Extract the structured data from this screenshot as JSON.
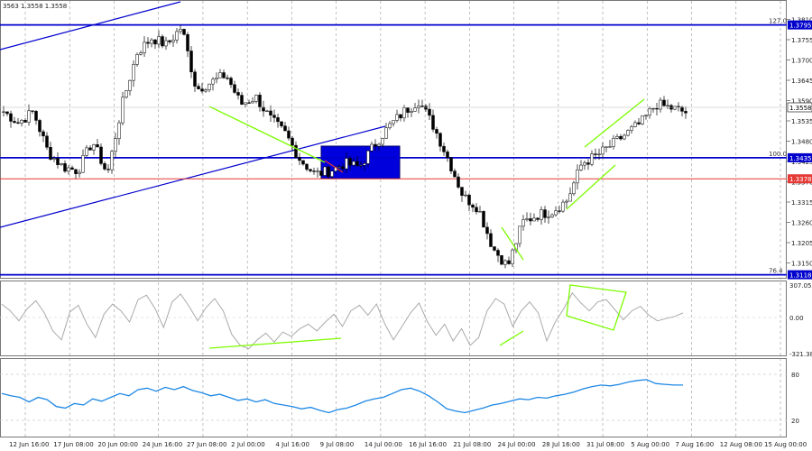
{
  "chart_data": [
    {
      "type": "candlestick",
      "symbol_text": "3563 1.3558 1.3558",
      "ylim": [
        1.305,
        1.384
      ],
      "y_ticks": [
        "1.3810",
        "1.3755",
        "1.3700",
        "1.3645",
        "1.3590",
        "1.3535",
        "1.3480",
        "1.3425",
        "1.3370",
        "1.3315",
        "1.3260",
        "1.3205",
        "1.3150",
        "1.3095"
      ],
      "x_labels": [
        "12 Jun 16:00",
        "17 Jun 08:00",
        "20 Jun 00:00",
        "24 Jun 16:00",
        "27 Jun 08:00",
        "2 Jul 00:00",
        "4 Jul 16:00",
        "9 Jul 08:00",
        "14 Jul 00:00",
        "16 Jul 16:00",
        "21 Jul 08:00",
        "24 Jul 00:00",
        "28 Jul 16:00",
        "31 Jul 08:00",
        "5 Aug 00:00",
        "7 Aug 16:00",
        "12 Aug 08:00",
        "15 Aug 00:00"
      ],
      "close_anchors": [
        1.356,
        1.353,
        1.356,
        1.345,
        1.341,
        1.34,
        1.348,
        1.339,
        1.358,
        1.372,
        1.376,
        1.374,
        1.379,
        1.362,
        1.364,
        1.366,
        1.358,
        1.36,
        1.354,
        1.35,
        1.343,
        1.339,
        1.34,
        1.342,
        1.341,
        1.347,
        1.352,
        1.356,
        1.359,
        1.352,
        1.343,
        1.333,
        1.33,
        1.319,
        1.314,
        1.326,
        1.328,
        1.329,
        1.332,
        1.342,
        1.344,
        1.347,
        1.35,
        1.353,
        1.358,
        1.357,
        1.3558
      ],
      "levels": [
        {
          "fib": "127.0",
          "price": 1.3795,
          "tag": "1.3795",
          "color": "#0000cc"
        },
        {
          "fib": "100.0",
          "price": 1.3435,
          "tag": "1.3435",
          "color": "#0000cc"
        },
        {
          "fib": "",
          "price": 1.3378,
          "tag": "1.3378",
          "color": "#e53935"
        },
        {
          "fib": "76.4",
          "price": 1.3118,
          "tag": "1.3118",
          "color": "#0000cc"
        }
      ],
      "current_price_tag": "1.3558",
      "colors": {
        "level": "#0000cc",
        "support": "#e53935",
        "trend": "#7cfc00",
        "zone": "#0000dd",
        "channel": "#0000cc"
      }
    },
    {
      "type": "line",
      "name": "",
      "y_ticks": [
        "307.0503",
        "0.00",
        "-321.389"
      ],
      "ylim": [
        -321.389,
        307.0503
      ],
      "values": [
        120,
        60,
        -30,
        80,
        150,
        40,
        -120,
        -200,
        50,
        110,
        -60,
        -180,
        30,
        120,
        60,
        -40,
        160,
        200,
        80,
        -90,
        140,
        210,
        100,
        -30,
        90,
        170,
        60,
        -150,
        -250,
        -280,
        -200,
        -140,
        -220,
        -130,
        -170,
        -100,
        -60,
        -120,
        -40,
        30,
        -80,
        60,
        110,
        20,
        120,
        -60,
        -200,
        -80,
        40,
        130,
        -40,
        -160,
        -60,
        -210,
        -100,
        -250,
        -180,
        60,
        170,
        120,
        -80,
        60,
        140,
        40,
        -210,
        -40,
        80,
        220,
        130,
        60,
        140,
        160,
        70,
        -20,
        60,
        100,
        20,
        -30,
        -10,
        10,
        40
      ],
      "color": "#aaaaaa",
      "trend_color": "#7cfc00"
    },
    {
      "type": "line",
      "name": "",
      "y_ticks": [
        "80",
        "20"
      ],
      "ylim": [
        0,
        100
      ],
      "values": [
        55,
        52,
        50,
        44,
        50,
        47,
        38,
        36,
        42,
        40,
        48,
        45,
        50,
        55,
        52,
        60,
        62,
        58,
        63,
        60,
        64,
        59,
        56,
        52,
        54,
        50,
        46,
        48,
        44,
        47,
        42,
        40,
        38,
        35,
        37,
        33,
        30,
        34,
        36,
        40,
        45,
        48,
        50,
        55,
        60,
        62,
        58,
        52,
        44,
        35,
        32,
        30,
        33,
        36,
        40,
        42,
        45,
        48,
        47,
        50,
        49,
        52,
        54,
        57,
        61,
        64,
        66,
        65,
        67,
        70,
        72,
        73,
        68,
        67,
        66,
        66
      ],
      "color": "#1e88e5"
    }
  ]
}
